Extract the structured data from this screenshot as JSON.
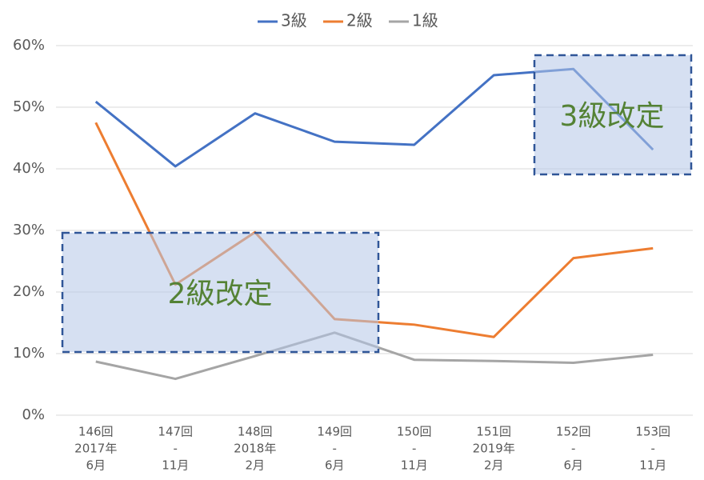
{
  "chart_data": {
    "type": "line",
    "categories": [
      [
        "146回",
        "2017年",
        "6月"
      ],
      [
        "147回",
        "-",
        "11月"
      ],
      [
        "148回",
        "2018年",
        "2月"
      ],
      [
        "149回",
        "-",
        "6月"
      ],
      [
        "150回",
        "-",
        "11月"
      ],
      [
        "151回",
        "2019年",
        "2月"
      ],
      [
        "152回",
        "-",
        "6月"
      ],
      [
        "153回",
        "-",
        "11月"
      ]
    ],
    "series": [
      {
        "name": "3級",
        "color": "#4472c4",
        "values": [
          50.9,
          40.4,
          49.0,
          44.4,
          43.9,
          55.2,
          56.2,
          43.1
        ]
      },
      {
        "name": "2級",
        "color": "#ed7d31",
        "values": [
          47.5,
          21.2,
          29.7,
          15.6,
          14.7,
          12.7,
          25.5,
          27.1
        ]
      },
      {
        "name": "1級",
        "color": "#a5a5a5",
        "values": [
          8.7,
          5.9,
          9.6,
          13.4,
          9.0,
          8.8,
          8.5,
          9.8
        ]
      }
    ],
    "ylim": [
      0,
      60
    ],
    "yticks": [
      {
        "value": 0,
        "label": "0%"
      },
      {
        "value": 10,
        "label": "10%"
      },
      {
        "value": 20,
        "label": "20%"
      },
      {
        "value": 30,
        "label": "30%"
      },
      {
        "value": 40,
        "label": "40%"
      },
      {
        "value": 50,
        "label": "50%"
      },
      {
        "value": 60,
        "label": "60%"
      }
    ],
    "grid": true,
    "legend": "top",
    "annotations": [
      "2級改定",
      "3級改定"
    ],
    "annotation_color": "#548235"
  }
}
